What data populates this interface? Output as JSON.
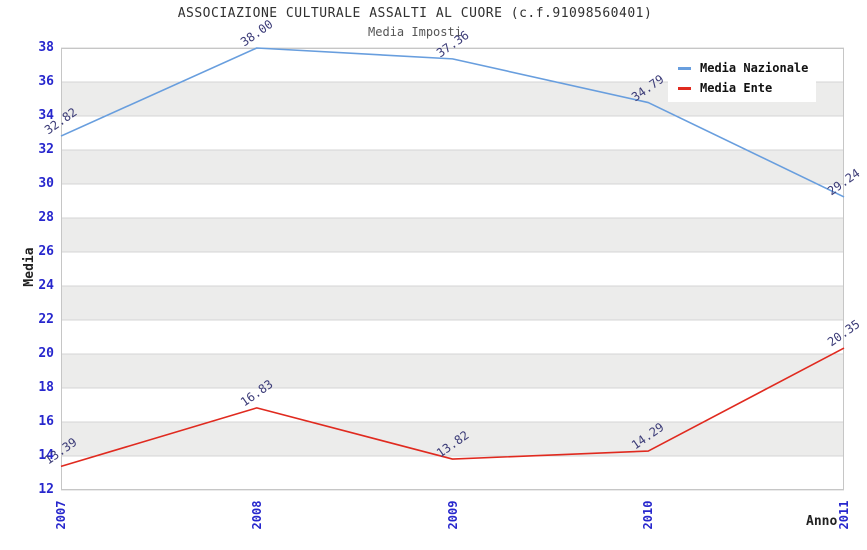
{
  "chart_data": {
    "type": "line",
    "title": "ASSOCIAZIONE CULTURALE ASSALTI AL CUORE (c.f.91098560401)",
    "subtitle": "Media Imposti",
    "xlabel": "Anno",
    "ylabel": "Media",
    "categories": [
      "2007",
      "2008",
      "2009",
      "2010",
      "2011"
    ],
    "series": [
      {
        "name": "Media Nazionale",
        "color": "#689ede",
        "values": [
          32.82,
          38.0,
          37.36,
          34.79,
          29.24
        ]
      },
      {
        "name": "Media Ente",
        "color": "#e02a1f",
        "values": [
          13.39,
          16.83,
          13.82,
          14.29,
          20.35
        ]
      }
    ],
    "ylim": [
      12,
      38
    ],
    "ytick_step": 2,
    "yticks": [
      12,
      14,
      16,
      18,
      20,
      22,
      24,
      26,
      28,
      30,
      32,
      34,
      36,
      38
    ],
    "grid": "horizontal-bands",
    "legend_position": "top-right",
    "colors": {
      "tick_label": "#2727cd",
      "point_label": "#3c3c78",
      "band_light": "#ffffff",
      "band_dark": "#ececeb",
      "gridline": "#d4d4d4",
      "plot_border": "#c6c6c6",
      "title": "#303030",
      "subtitle": "#555555"
    }
  }
}
